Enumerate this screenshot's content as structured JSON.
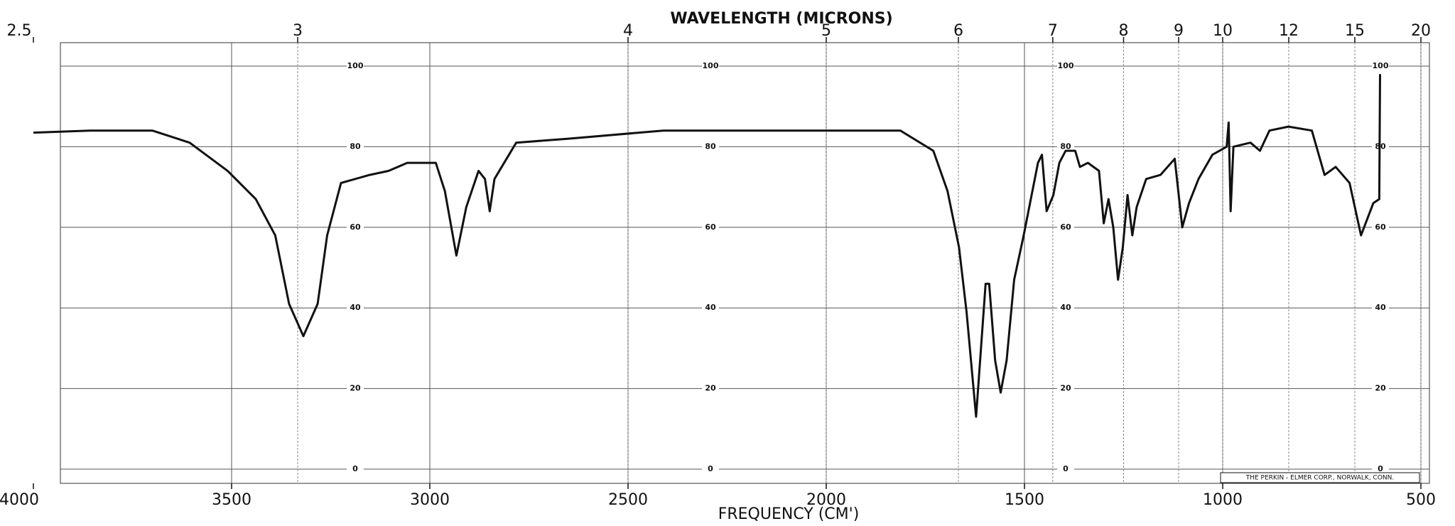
{
  "chart_data": {
    "type": "line",
    "title": "WAVELENGTH (MICRONS)",
    "x_label": "FREQUENCY (CM')",
    "note": "THE PERKIN - ELMER CORP., NORWALK, CONN.",
    "color": "#111111",
    "grid": true,
    "xlim": [
      4000,
      500
    ],
    "xticks": [
      4000,
      3500,
      3000,
      2500,
      2000,
      1500,
      1000,
      500
    ],
    "x2lim": [
      2.5,
      20
    ],
    "x2scale": "reciprocal",
    "x2ticks": [
      2.5,
      3,
      4,
      5,
      6,
      7,
      8,
      9,
      10,
      12,
      15,
      20
    ],
    "ylim": [
      0,
      100
    ],
    "yticks": [
      0,
      20,
      40,
      60,
      80,
      100
    ],
    "x": [
      4000,
      3857,
      3700,
      3606,
      3510,
      3439,
      3390,
      3355,
      3319,
      3283,
      3259,
      3224,
      3152,
      3104,
      3057,
      2985,
      2962,
      2933,
      2908,
      2877,
      2861,
      2849,
      2837,
      2782,
      2650,
      2411,
      1933,
      1813,
      1730,
      1694,
      1665,
      1646,
      1622,
      1598,
      1589,
      1574,
      1560,
      1545,
      1526,
      1502,
      1466,
      1456,
      1444,
      1427,
      1412,
      1396,
      1372,
      1360,
      1340,
      1312,
      1300,
      1288,
      1276,
      1264,
      1252,
      1240,
      1228,
      1217,
      1193,
      1157,
      1121,
      1102,
      1085,
      1061,
      1026,
      990,
      985,
      980,
      973,
      930,
      906,
      882,
      834,
      775,
      743,
      715,
      680,
      651,
      620,
      605,
      603
    ],
    "values": [
      83.5,
      84,
      84,
      81,
      74,
      67,
      58,
      41,
      33,
      41,
      58,
      71,
      73,
      74,
      76,
      76,
      69,
      53,
      65,
      74,
      72,
      64,
      72,
      81,
      82,
      84,
      84,
      84,
      79,
      69,
      55,
      39,
      13,
      46,
      46,
      27,
      19,
      27,
      47,
      58,
      76,
      78,
      64,
      68,
      76,
      79,
      79,
      75,
      76,
      74,
      61,
      67,
      60,
      47,
      55,
      68,
      58,
      65,
      72,
      73,
      77,
      60,
      66,
      72,
      78,
      80,
      86,
      64,
      80,
      81,
      79,
      84,
      85,
      84,
      73,
      75,
      71,
      58,
      66,
      67,
      98
    ]
  }
}
